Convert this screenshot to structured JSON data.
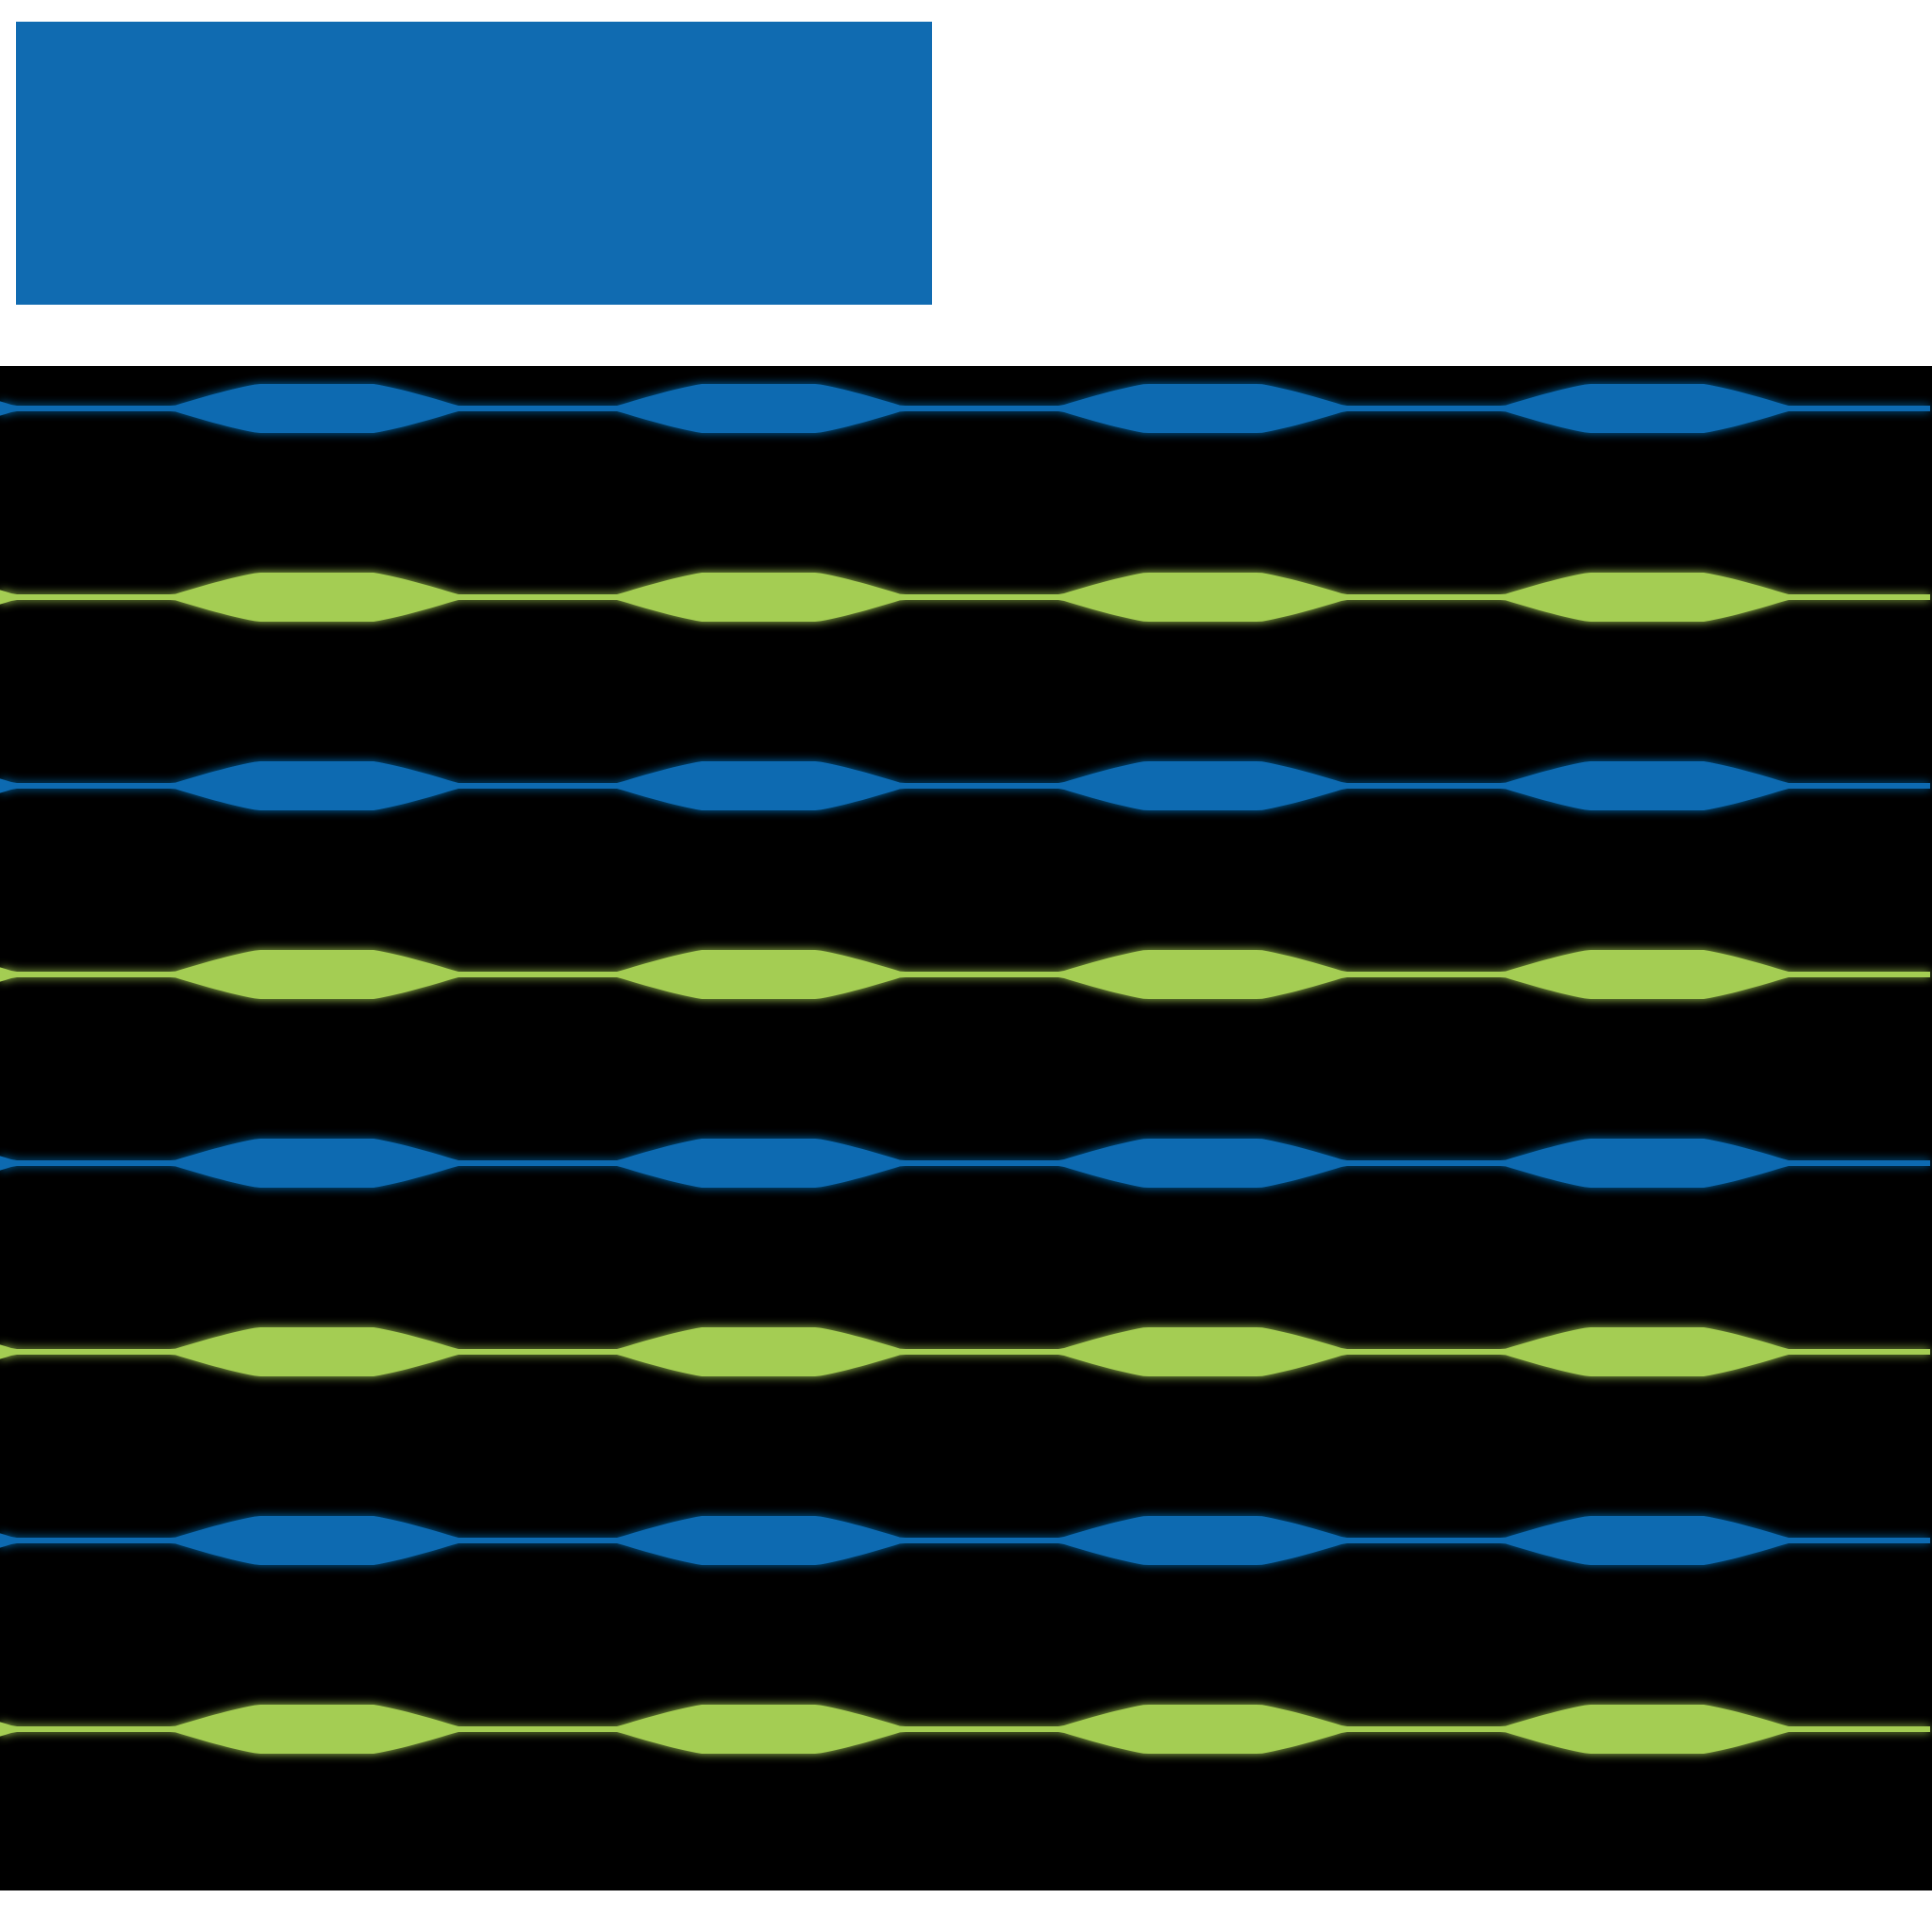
{
  "colors": {
    "background": "#ffffff",
    "top_block": "#106bb1",
    "panel": "#000000",
    "blue_wave": "#106bb1",
    "green_wave": "#a4cd52"
  },
  "icons": {
    "top_block": "solid-blue-rectangle",
    "waves": "lens-wave-stripes"
  },
  "waves": [
    {
      "color": "blue"
    },
    {
      "color": "green"
    },
    {
      "color": "blue"
    },
    {
      "color": "green"
    },
    {
      "color": "blue"
    },
    {
      "color": "green"
    },
    {
      "color": "blue"
    },
    {
      "color": "green"
    }
  ]
}
